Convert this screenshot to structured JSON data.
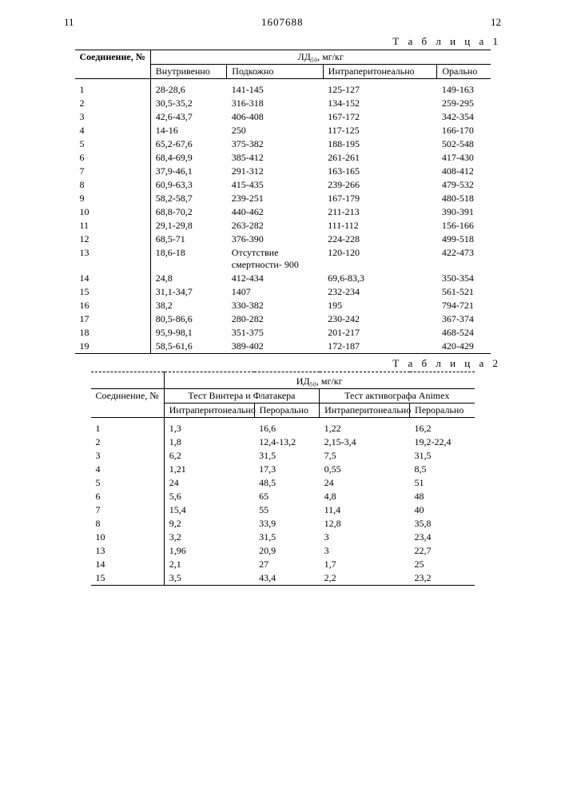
{
  "header": {
    "page_left": "11",
    "doc_number": "1607688",
    "page_right": "12"
  },
  "table1": {
    "label": "Т а б л и ц а 1",
    "super_header": "ЛД₅₀, мг/кг",
    "row_header": "Соединение, №",
    "columns": [
      "Внутривенно",
      "Подкожно",
      "Интраперитонеально",
      "Орально"
    ],
    "rows": [
      [
        "1",
        "28-28,6",
        "141-145",
        "125-127",
        "149-163"
      ],
      [
        "2",
        "30,5-35,2",
        "316-318",
        "134-152",
        "259-295"
      ],
      [
        "3",
        "42,6-43,7",
        "406-408",
        "167-172",
        "342-354"
      ],
      [
        "4",
        "14-16",
        "250",
        "117-125",
        "166-170"
      ],
      [
        "5",
        "65,2-67,6",
        "375-382",
        "188-195",
        "502-548"
      ],
      [
        "6",
        "68,4-69,9",
        "385-412",
        "261-261",
        "417-430"
      ],
      [
        "7",
        "37,9-46,1",
        "291-312",
        "163-165",
        "408-412"
      ],
      [
        "8",
        "60,9-63,3",
        "415-435",
        "239-266",
        "479-532"
      ],
      [
        "9",
        "58,2-58,7",
        "239-251",
        "167-179",
        "480-518"
      ],
      [
        "10",
        "68,8-70,2",
        "440-462",
        "211-213",
        "390-391"
      ],
      [
        "11",
        "29,1-29,8",
        "263-282",
        "111-112",
        "156-166"
      ],
      [
        "12",
        "68,5-71",
        "376-390",
        "224-228",
        "499-518"
      ],
      [
        "13",
        "18,6-18",
        "Отсутствие смертности- 900",
        "120-120",
        "422-473"
      ],
      [
        "14",
        "24,8",
        "412-434",
        "69,6-83,3",
        "350-354"
      ],
      [
        "15",
        "31,1-34,7",
        "1407",
        "232-234",
        "561-521"
      ],
      [
        "16",
        "38,2",
        "330-382",
        "195",
        "794-721"
      ],
      [
        "17",
        "80,5-86,6",
        "280-282",
        "230-242",
        "367-374"
      ],
      [
        "18",
        "95,9-98,1",
        "351-375",
        "201-217",
        "468-524"
      ],
      [
        "19",
        "58,5-61,6",
        "389-402",
        "172-187",
        "420-429"
      ]
    ]
  },
  "table2": {
    "label": "Т а б л и ц а 2",
    "super_header": "ИД₅₀, мг/кг",
    "row_header": "Соединение, №",
    "group_headers": [
      "Тест Винтера и Флатакера",
      "Тест активографа Animex"
    ],
    "columns": [
      "Интраперитонеально",
      "Перорально",
      "Интраперитонеально",
      "Перорально"
    ],
    "rows": [
      [
        "1",
        "1,3",
        "16,6",
        "1,22",
        "16,2"
      ],
      [
        "2",
        "1,8",
        "12,4-13,2",
        "2,15-3,4",
        "19,2-22,4"
      ],
      [
        "3",
        "6,2",
        "31,5",
        "7,5",
        "31,5"
      ],
      [
        "4",
        "1,21",
        "17,3",
        "0,55",
        "8,5"
      ],
      [
        "5",
        "24",
        "48,5",
        "24",
        "51"
      ],
      [
        "6",
        "5,6",
        "65",
        "4,8",
        "48"
      ],
      [
        "7",
        "15,4",
        "55",
        "11,4",
        "40"
      ],
      [
        "8",
        "9,2",
        "33,9",
        "12,8",
        "35,8"
      ],
      [
        "10",
        "3,2",
        "31,5",
        "3",
        "23,4"
      ],
      [
        "13",
        "1,96",
        "20,9",
        "3",
        "22,7"
      ],
      [
        "14",
        "2,1",
        "27",
        "1,7",
        "25"
      ],
      [
        "15",
        "3,5",
        "43,4",
        "2,2",
        "23,2"
      ]
    ]
  }
}
